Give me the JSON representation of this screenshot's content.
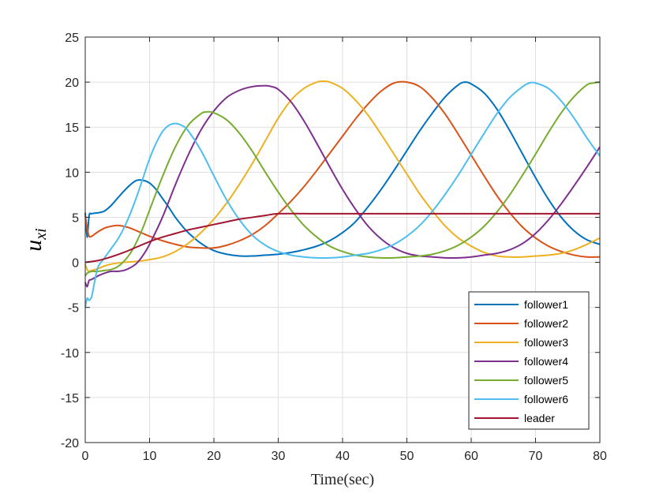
{
  "chart_data": {
    "type": "line",
    "title": "",
    "xlabel": "Time(sec)",
    "ylabel_base": "u",
    "ylabel_sub": "xi",
    "xlim": [
      0,
      80
    ],
    "ylim": [
      -20,
      25
    ],
    "x_ticks": [
      0,
      10,
      20,
      30,
      40,
      50,
      60,
      70,
      80
    ],
    "y_ticks": [
      -20,
      -15,
      -10,
      -5,
      0,
      5,
      10,
      15,
      20,
      25
    ],
    "x_tick_labels": [
      "0",
      "10",
      "20",
      "30",
      "40",
      "50",
      "60",
      "70",
      "80"
    ],
    "y_tick_labels": [
      "-20",
      "-15",
      "-10",
      "-5",
      "0",
      "5",
      "10",
      "15",
      "20",
      "25"
    ],
    "grid": true,
    "legend_position": "bottom-right",
    "series": [
      {
        "name": "follower1",
        "color": "#0072BD",
        "x": [
          0,
          0.3,
          0.6,
          1,
          2,
          3,
          4,
          5,
          6,
          7,
          8,
          9,
          10,
          11,
          12,
          13,
          14,
          15,
          16,
          18,
          20,
          22,
          24,
          26,
          28,
          30,
          32,
          34,
          36,
          38,
          40,
          42,
          44,
          46,
          48,
          50,
          52,
          54,
          56,
          58,
          59,
          60,
          62,
          64,
          66,
          68,
          70,
          72,
          74,
          76,
          78,
          80
        ],
        "y": [
          5.5,
          2.8,
          5.2,
          5.4,
          5.5,
          5.7,
          6.3,
          7.1,
          7.9,
          8.6,
          9.1,
          9.1,
          8.8,
          8.1,
          7.1,
          6.1,
          5.0,
          4.1,
          3.3,
          2.1,
          1.3,
          0.9,
          0.7,
          0.7,
          0.8,
          0.9,
          1.1,
          1.4,
          1.8,
          2.4,
          3.3,
          4.5,
          6.2,
          8.1,
          10.2,
          12.4,
          14.6,
          16.6,
          18.4,
          19.7,
          20.0,
          19.8,
          18.8,
          17.0,
          14.6,
          12.0,
          9.4,
          7.0,
          5.0,
          3.5,
          2.5,
          2.0
        ]
      },
      {
        "name": "follower2",
        "color": "#D95319",
        "x": [
          0,
          0.3,
          0.6,
          1,
          2,
          3,
          4,
          5,
          6,
          7,
          8,
          9,
          10,
          12,
          14,
          16,
          18,
          20,
          22,
          24,
          26,
          28,
          30,
          32,
          34,
          36,
          38,
          40,
          42,
          44,
          46,
          48,
          50,
          52,
          54,
          56,
          58,
          60,
          62,
          64,
          66,
          68,
          70,
          72,
          74,
          76,
          78,
          80
        ],
        "y": [
          5.2,
          3.8,
          2.9,
          2.9,
          3.4,
          3.8,
          4.0,
          4.1,
          4.0,
          3.8,
          3.5,
          3.2,
          2.9,
          2.4,
          2.0,
          1.7,
          1.6,
          1.6,
          1.9,
          2.4,
          3.1,
          4.1,
          5.4,
          6.8,
          8.4,
          10.2,
          12.1,
          14.0,
          15.9,
          17.6,
          19.0,
          19.9,
          20.0,
          19.5,
          18.2,
          16.4,
          14.2,
          11.9,
          9.6,
          7.4,
          5.5,
          3.9,
          2.7,
          1.8,
          1.2,
          0.8,
          0.6,
          0.6
        ]
      },
      {
        "name": "follower3",
        "color": "#EDB120",
        "x": [
          0,
          0.3,
          0.6,
          1,
          2,
          3,
          4,
          6,
          8,
          10,
          12,
          14,
          16,
          18,
          20,
          22,
          24,
          26,
          28,
          30,
          32,
          34,
          36,
          37,
          38,
          40,
          42,
          44,
          46,
          48,
          50,
          52,
          54,
          56,
          58,
          60,
          62,
          64,
          66,
          68,
          70,
          72,
          74,
          76,
          78,
          80
        ],
        "y": [
          -0.2,
          -0.8,
          -1.0,
          -0.9,
          -0.7,
          -0.4,
          -0.2,
          0.0,
          0.1,
          0.3,
          0.6,
          1.2,
          2.1,
          3.3,
          4.8,
          6.6,
          8.7,
          11.0,
          13.5,
          16.0,
          18.0,
          19.3,
          20.0,
          20.1,
          20.0,
          19.3,
          18.0,
          16.3,
          14.2,
          12.0,
          9.8,
          7.6,
          5.7,
          4.0,
          2.7,
          1.8,
          1.1,
          0.7,
          0.6,
          0.6,
          0.7,
          0.8,
          1.0,
          1.4,
          2.0,
          2.7
        ]
      },
      {
        "name": "follower4",
        "color": "#7E2F8E",
        "x": [
          0,
          0.3,
          0.6,
          1,
          2,
          3,
          4,
          5,
          6,
          7,
          8,
          9,
          10,
          12,
          14,
          16,
          18,
          20,
          22,
          24,
          26,
          28,
          29,
          30,
          32,
          34,
          36,
          38,
          40,
          42,
          44,
          46,
          48,
          50,
          52,
          54,
          56,
          58,
          60,
          62,
          64,
          66,
          68,
          70,
          72,
          74,
          76,
          78,
          80
        ],
        "y": [
          -2.2,
          -2.7,
          -2.0,
          -1.9,
          -1.5,
          -1.2,
          -1.0,
          -1.0,
          -0.9,
          -0.6,
          -0.1,
          0.8,
          2.0,
          5.0,
          8.6,
          11.9,
          14.7,
          16.8,
          18.3,
          19.1,
          19.5,
          19.6,
          19.5,
          19.2,
          17.8,
          15.7,
          13.2,
          10.6,
          8.1,
          5.9,
          4.0,
          2.6,
          1.6,
          1.0,
          0.7,
          0.6,
          0.5,
          0.5,
          0.6,
          0.8,
          1.0,
          1.4,
          2.1,
          3.2,
          4.7,
          6.5,
          8.5,
          10.6,
          12.8
        ]
      },
      {
        "name": "follower5",
        "color": "#77AC30",
        "x": [
          0,
          0.3,
          0.6,
          1,
          2,
          3,
          4,
          5,
          6,
          7,
          8,
          9,
          10,
          12,
          14,
          16,
          18,
          19,
          20,
          22,
          24,
          26,
          28,
          30,
          32,
          34,
          36,
          38,
          40,
          42,
          44,
          46,
          48,
          50,
          52,
          54,
          56,
          58,
          60,
          62,
          64,
          66,
          68,
          70,
          72,
          74,
          76,
          78,
          79,
          80
        ],
        "y": [
          -1.5,
          -1.2,
          -1.1,
          -1.0,
          -1.0,
          -0.9,
          -0.8,
          -0.5,
          0.1,
          1.0,
          2.3,
          3.9,
          5.8,
          9.5,
          12.8,
          15.2,
          16.5,
          16.7,
          16.6,
          15.8,
          14.3,
          12.3,
          10.0,
          7.8,
          5.8,
          4.1,
          2.8,
          1.8,
          1.2,
          0.8,
          0.6,
          0.5,
          0.5,
          0.6,
          0.7,
          0.9,
          1.3,
          1.9,
          2.8,
          4.0,
          5.6,
          7.5,
          9.7,
          12.0,
          14.4,
          16.6,
          18.4,
          19.7,
          19.9,
          20.0
        ]
      },
      {
        "name": "follower6",
        "color": "#4DBEEE",
        "x": [
          0,
          0.3,
          0.6,
          1,
          1.5,
          2,
          3,
          4,
          5,
          6,
          7,
          8,
          9,
          10,
          11,
          12,
          13,
          14,
          15,
          16,
          18,
          20,
          22,
          24,
          26,
          28,
          30,
          32,
          34,
          36,
          38,
          40,
          42,
          44,
          46,
          48,
          50,
          52,
          54,
          56,
          58,
          60,
          62,
          64,
          66,
          68,
          69,
          70,
          72,
          74,
          76,
          78,
          80
        ],
        "y": [
          -5.0,
          -4.0,
          -4.2,
          -3.8,
          -2.0,
          -0.5,
          0.5,
          1.5,
          2.5,
          3.8,
          5.4,
          7.3,
          9.4,
          11.5,
          13.2,
          14.5,
          15.2,
          15.4,
          15.2,
          14.6,
          12.4,
          9.6,
          6.9,
          4.7,
          3.0,
          1.9,
          1.2,
          0.8,
          0.6,
          0.5,
          0.5,
          0.6,
          0.8,
          1.0,
          1.4,
          2.0,
          2.9,
          4.1,
          5.7,
          7.6,
          9.7,
          12.0,
          14.3,
          16.5,
          18.3,
          19.5,
          19.9,
          19.9,
          19.3,
          17.9,
          16.0,
          13.8,
          11.8
        ]
      },
      {
        "name": "leader",
        "color": "#A2142F",
        "x": [
          0,
          2,
          4,
          6,
          8,
          10,
          12,
          14,
          16,
          18,
          20,
          22,
          24,
          26,
          28,
          30,
          35,
          40,
          50,
          60,
          70,
          80
        ],
        "y": [
          0.0,
          0.2,
          0.6,
          1.1,
          1.7,
          2.3,
          2.8,
          3.2,
          3.6,
          3.9,
          4.2,
          4.5,
          4.8,
          5.0,
          5.2,
          5.4,
          5.4,
          5.4,
          5.4,
          5.4,
          5.4,
          5.4
        ]
      }
    ]
  }
}
